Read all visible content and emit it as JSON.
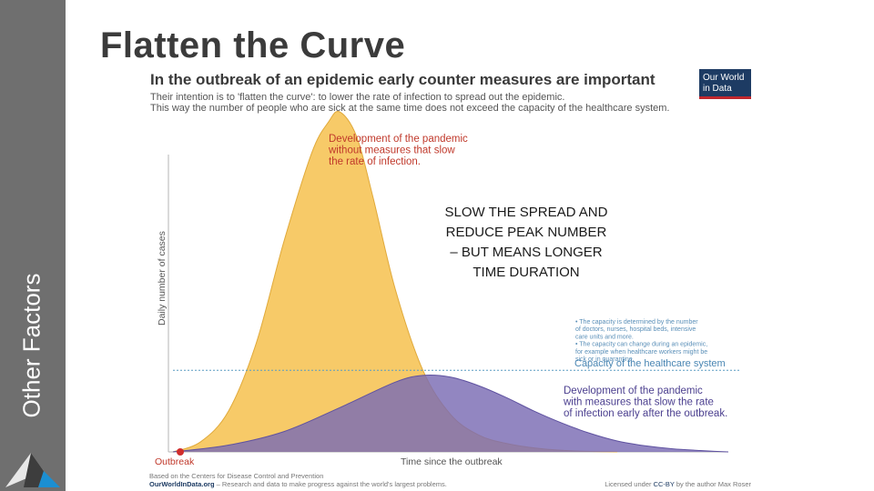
{
  "sidebar": {
    "label": "Other Factors"
  },
  "slide": {
    "title": "Flatten the Curve"
  },
  "callout": {
    "lines": [
      "SLOW THE SPREAD AND",
      "REDUCE PEAK NUMBER",
      "– BUT MEANS LONGER",
      "TIME DURATION"
    ]
  },
  "badge": {
    "line1": "Our World",
    "line2": "in Data"
  },
  "chart_data": {
    "type": "area",
    "title": "In the outbreak of an epidemic early counter measures are important",
    "subtitle_lines": [
      "Their intention is to 'flatten the curve': to lower the rate of infection to spread out the epidemic.",
      "This way the number of people who are sick at the same time does not exceed the capacity of the healthcare system."
    ],
    "xlabel": "Time since the outbreak",
    "ylabel": "Daily number of cases",
    "xlim": [
      0,
      100
    ],
    "ylim": [
      0,
      100
    ],
    "series": [
      {
        "name": "Development of the pandemic without measures that slow the rate of infection.",
        "label_lines": [
          "Development of the pandemic",
          "without measures that slow",
          "the rate of infection."
        ],
        "color": "#f6c65b",
        "x": [
          0,
          5,
          10,
          15,
          20,
          25,
          28,
          30,
          33,
          36,
          40,
          45,
          50,
          55,
          60,
          66,
          72,
          80
        ],
        "y": [
          0,
          3,
          12,
          32,
          62,
          88,
          97,
          100,
          93,
          75,
          48,
          24,
          11,
          5,
          2.5,
          1,
          0.3,
          0
        ]
      },
      {
        "name": "Development of the pandemic with measures that slow the rate of infection early after the outbreak.",
        "label_lines": [
          "Development of the pandemic",
          "with measures that slow the rate",
          "of infection early after the outbreak."
        ],
        "color": "#7a6bb3",
        "x": [
          0,
          10,
          20,
          30,
          40,
          45,
          50,
          55,
          60,
          65,
          70,
          75,
          80,
          85,
          90,
          95,
          100
        ],
        "y": [
          0,
          2,
          6,
          13,
          20.5,
          22.5,
          22,
          19.5,
          16,
          12,
          8.5,
          5.5,
          3.2,
          1.8,
          0.9,
          0.4,
          0
        ]
      }
    ],
    "capacity": {
      "value": 24,
      "label": "Capacity of the healthcare system",
      "notes": [
        "• The capacity is determined by the number",
        "of doctors, nurses, hospital beds, intensive",
        "care units and more.",
        "• The capacity can change during an epidemic,",
        "for example when healthcare workers might be",
        "sick or in quarantine."
      ]
    },
    "outbreak_label": "Outbreak",
    "footer": {
      "source_line": "Based on the Centers for Disease Control and Prevention",
      "site": "OurWorldInData.org",
      "site_tagline": " – Research and data to make progress against the world's largest problems.",
      "license_prefix": "Licensed under ",
      "license": "CC-BY",
      "license_suffix": " by the author Max Roser"
    }
  }
}
